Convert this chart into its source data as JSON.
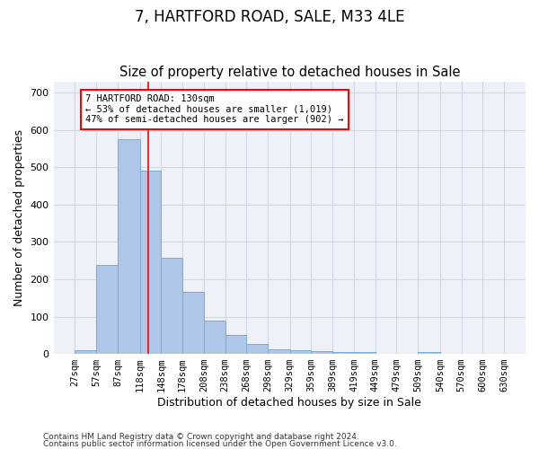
{
  "title": "7, HARTFORD ROAD, SALE, M33 4LE",
  "subtitle": "Size of property relative to detached houses in Sale",
  "xlabel": "Distribution of detached houses by size in Sale",
  "ylabel": "Number of detached properties",
  "bar_edges": [
    27,
    57,
    87,
    118,
    148,
    178,
    208,
    238,
    268,
    298,
    329,
    359,
    389,
    419,
    449,
    479,
    509,
    540,
    570,
    600,
    630
  ],
  "bar_heights": [
    10,
    238,
    575,
    490,
    258,
    165,
    88,
    50,
    27,
    12,
    10,
    7,
    4,
    4,
    0,
    0,
    5,
    0,
    0,
    0
  ],
  "bar_color": "#aec6e8",
  "bar_edgecolor": "#7aadd4",
  "grid_color": "#d0d8e8",
  "background_color": "#eef2f8",
  "red_line_x": 130,
  "annotation_text": "7 HARTFORD ROAD: 130sqm\n← 53% of detached houses are smaller (1,019)\n47% of semi-detached houses are larger (902) →",
  "annotation_box_color": "white",
  "annotation_box_edgecolor": "red",
  "ylim": [
    0,
    730
  ],
  "yticks": [
    0,
    100,
    200,
    300,
    400,
    500,
    600,
    700
  ],
  "footnote1": "Contains HM Land Registry data © Crown copyright and database right 2024.",
  "footnote2": "Contains public sector information licensed under the Open Government Licence v3.0.",
  "title_fontsize": 12,
  "subtitle_fontsize": 10.5,
  "tick_label_fontsize": 7.5,
  "axis_label_fontsize": 9
}
